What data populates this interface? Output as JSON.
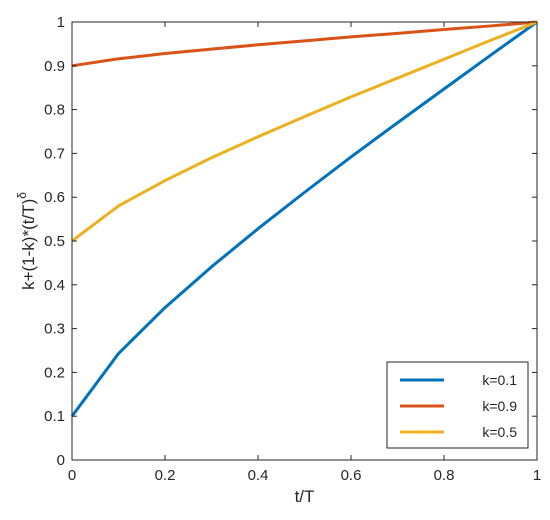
{
  "chart_data": {
    "type": "line",
    "title": "",
    "xlabel": "t/T",
    "ylabel": "k+(1-k)*(t/T)",
    "ylabel_superscript": "δ",
    "xlim": [
      0,
      1
    ],
    "ylim": [
      0,
      1
    ],
    "xticks": [
      "0",
      "0.2",
      "0.4",
      "0.6",
      "0.8",
      "1"
    ],
    "yticks": [
      "0",
      "0.1",
      "0.2",
      "0.3",
      "0.4",
      "0.5",
      "0.6",
      "0.7",
      "0.8",
      "0.9",
      "1"
    ],
    "grid": false,
    "legend_position": "bottom-right",
    "x": [
      0,
      0.1,
      0.2,
      0.3,
      0.4,
      0.5,
      0.6,
      0.7,
      0.8,
      0.9,
      1.0
    ],
    "series": [
      {
        "name": "k=0.1",
        "color": "#0072BD",
        "values": [
          0.1,
          0.243,
          0.348,
          0.441,
          0.528,
          0.611,
          0.692,
          0.77,
          0.847,
          0.924,
          1.0
        ]
      },
      {
        "name": "k=0.9",
        "color": "#D95319",
        "values": [
          0.9,
          0.916,
          0.928,
          0.938,
          0.948,
          0.957,
          0.966,
          0.974,
          0.983,
          0.991,
          1.0
        ]
      },
      {
        "name": "k=0.5",
        "color": "#EDB120",
        "values": [
          0.5,
          0.58,
          0.638,
          0.69,
          0.738,
          0.784,
          0.829,
          0.872,
          0.915,
          0.958,
          1.0
        ]
      }
    ]
  }
}
